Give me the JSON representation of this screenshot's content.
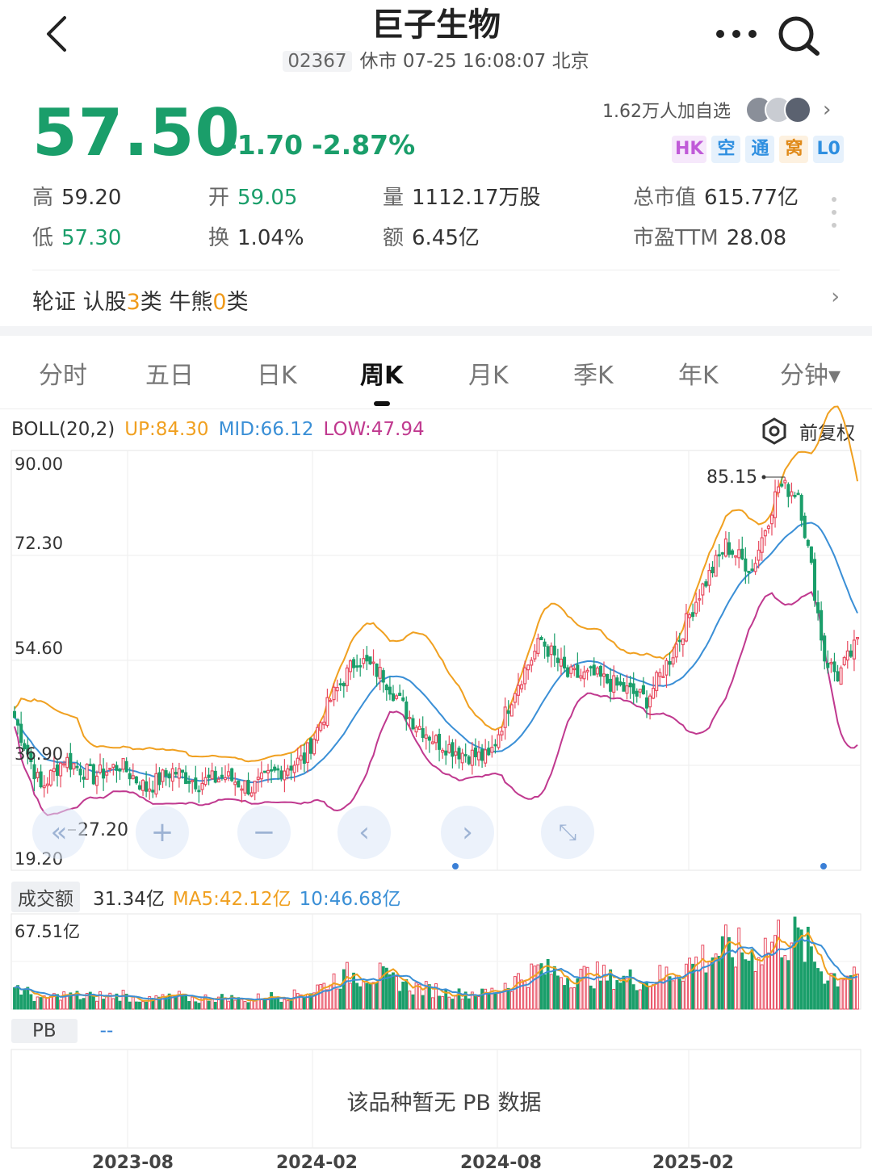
{
  "header": {
    "title": "巨子生物",
    "code": "02367",
    "status": "休市 07-25 16:08:07 北京"
  },
  "quote": {
    "price": "57.50",
    "change": "-1.70",
    "change_pct": "-2.87%",
    "watchers": "1.62万人加自选",
    "tags": [
      {
        "label": "HK",
        "color": "#c05ad8",
        "bg": "#f6e8fb"
      },
      {
        "label": "空",
        "color": "#2f8fe0",
        "bg": "#e6f1fc"
      },
      {
        "label": "通",
        "color": "#2f8fe0",
        "bg": "#e6f1fc"
      },
      {
        "label": "窝",
        "color": "#e08a1a",
        "bg": "#fdf1e0"
      },
      {
        "label": "L0",
        "color": "#2f8fe0",
        "bg": "#e6f1fc"
      }
    ]
  },
  "stats": {
    "high_label": "高",
    "high": "59.20",
    "open_label": "开",
    "open": "59.05",
    "vol_label": "量",
    "vol": "1112.17万股",
    "mcap_label": "总市值",
    "mcap": "615.77亿",
    "low_label": "低",
    "low": "57.30",
    "turnover_label": "换",
    "turnover": "1.04%",
    "amount_label": "额",
    "amount": "6.45亿",
    "pe_label": "市盈TTM",
    "pe": "28.08"
  },
  "warrants": {
    "prefix": "轮证 认股",
    "call_count": "3",
    "mid": "类 牛熊",
    "cbbc_count": "0",
    "suffix": "类"
  },
  "tabs": [
    "分时",
    "五日",
    "日K",
    "周K",
    "月K",
    "季K",
    "年K",
    "分钟▾"
  ],
  "active_tab": 3,
  "boll": {
    "name": "BOLL(20,2)",
    "up": "UP:84.30",
    "mid": "MID:66.12",
    "low": "LOW:47.94",
    "fq_label": "前复权",
    "colors": {
      "up": "#f0a020",
      "mid": "#3a8fd6",
      "low": "#c0398f"
    }
  },
  "price_axis": [
    "90.00",
    "72.30",
    "54.60",
    "36.90",
    "19.20"
  ],
  "annotations": {
    "high": "85.15",
    "low": "27.20"
  },
  "volume": {
    "label": "成交额",
    "value": "31.34亿",
    "ma5": "MA5:42.12亿",
    "ma10": "10:46.68亿",
    "axis_max": "67.51亿"
  },
  "pb": {
    "label": "PB",
    "value": "--",
    "empty_msg": "该品种暂无 PB 数据"
  },
  "x_labels": [
    "2023-08",
    "2024-02",
    "2024-08",
    "2025-02"
  ],
  "chart_data": {
    "type": "candlestick",
    "ylim": [
      19.2,
      90.0
    ],
    "x_ticks": [
      "2023-08",
      "2024-02",
      "2024-08",
      "2025-02"
    ],
    "close_anchors": [
      [
        0,
        45
      ],
      [
        8,
        33
      ],
      [
        15,
        38
      ],
      [
        24,
        35
      ],
      [
        32,
        37
      ],
      [
        40,
        33
      ],
      [
        48,
        36
      ],
      [
        56,
        34
      ],
      [
        64,
        35
      ],
      [
        72,
        33
      ],
      [
        80,
        36
      ],
      [
        88,
        38
      ],
      [
        96,
        48
      ],
      [
        104,
        55
      ],
      [
        112,
        52
      ],
      [
        120,
        45
      ],
      [
        128,
        41
      ],
      [
        136,
        39
      ],
      [
        144,
        38
      ],
      [
        152,
        50
      ],
      [
        160,
        58
      ],
      [
        168,
        52
      ],
      [
        176,
        52
      ],
      [
        184,
        50
      ],
      [
        192,
        48
      ],
      [
        200,
        56
      ],
      [
        208,
        66
      ],
      [
        216,
        74
      ],
      [
        224,
        70
      ],
      [
        232,
        84
      ],
      [
        238,
        83
      ],
      [
        242,
        70
      ],
      [
        246,
        55
      ],
      [
        250,
        52
      ],
      [
        256,
        57.5
      ]
    ],
    "annotations": [
      {
        "label": "85.15",
        "type": "high"
      },
      {
        "label": "27.20",
        "type": "low"
      }
    ],
    "series": [
      {
        "name": "UP",
        "color": "#f0a020"
      },
      {
        "name": "MID",
        "color": "#3a8fd6"
      },
      {
        "name": "LOW",
        "color": "#c0398f"
      }
    ],
    "volume_max": 67.51,
    "volume_unit": "亿"
  }
}
